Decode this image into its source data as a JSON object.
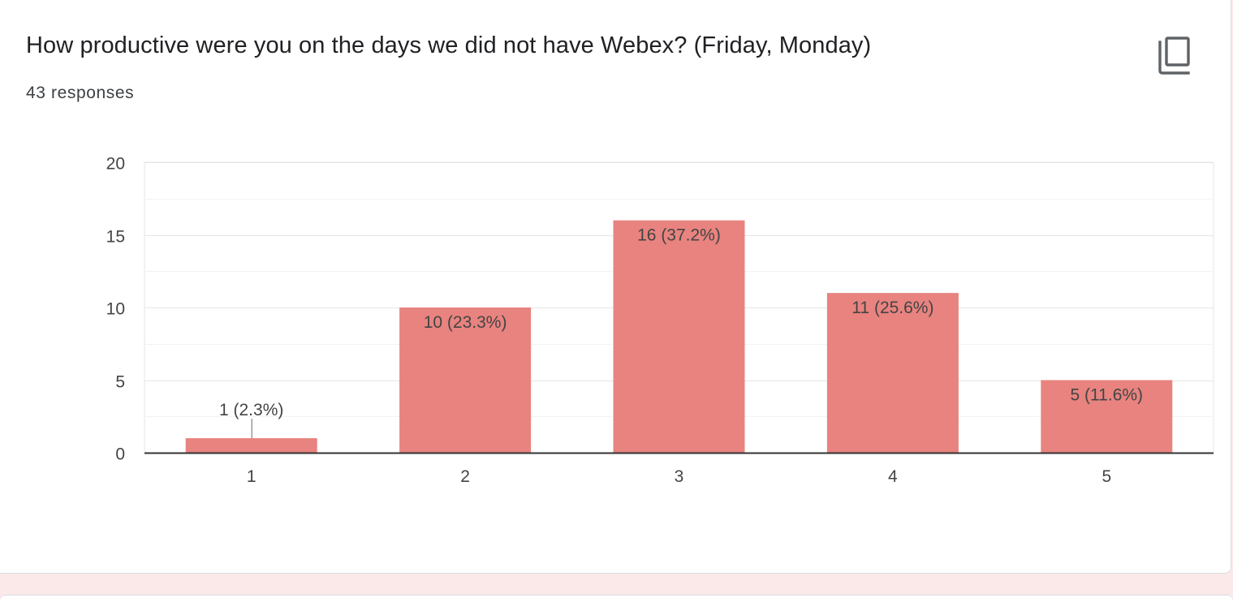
{
  "question": {
    "title": "How productive were you on the days we did not have Webex? (Friday, Monday)",
    "responses": "43 responses",
    "copy_icon": "copy-icon"
  },
  "colors": {
    "bar": "#e8837f",
    "grid": "#e6e6e6",
    "minor_grid": "#f3f3f3",
    "axis": "#333333",
    "label": "#444444",
    "background": "#ffffff",
    "page_tint": "#fbe9e9"
  },
  "chart_data": {
    "type": "bar",
    "categories": [
      "1",
      "2",
      "3",
      "4",
      "5"
    ],
    "values": [
      1,
      10,
      16,
      11,
      5
    ],
    "data_labels": [
      "1 (2.3%)",
      "10 (23.3%)",
      "16 (37.2%)",
      "11 (25.6%)",
      "5 (11.6%)"
    ],
    "ylim": [
      0,
      20
    ],
    "yticks": [
      0,
      5,
      10,
      15,
      20
    ],
    "ytick_labels": [
      "0",
      "5",
      "10",
      "15",
      "20"
    ],
    "minor_grid_step": 2.5,
    "grid": true,
    "xlabel": "",
    "ylabel": ""
  }
}
